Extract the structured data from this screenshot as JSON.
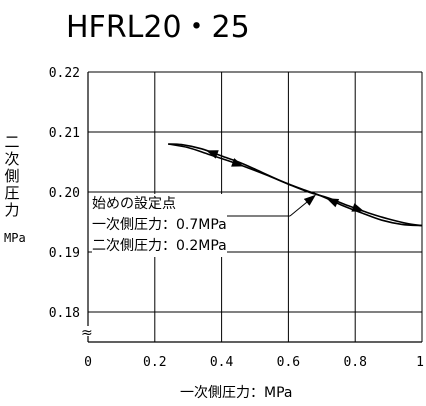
{
  "chart_data": {
    "type": "line",
    "title": "HFRL20・25",
    "xlabel": "一次側圧力：MPa",
    "ylabel": "二次側圧力",
    "yunit": "MPa",
    "xlim": [
      0,
      1
    ],
    "ylim": [
      0.175,
      0.22
    ],
    "x_ticks": [
      0,
      0.2,
      0.4,
      0.6,
      0.8,
      1
    ],
    "x_tick_labels": [
      "0",
      "0.2",
      "0.4",
      "0.6",
      "0.8",
      "1"
    ],
    "y_ticks": [
      0.18,
      0.19,
      0.2,
      0.21,
      0.22
    ],
    "y_tick_labels": [
      "0.18",
      "0.19",
      "0.20",
      "0.21",
      "0.22"
    ],
    "grid": true,
    "axis_break": "≈",
    "series": [
      {
        "direction": "increasing",
        "x": [
          0.24,
          0.3,
          0.36,
          0.42,
          0.48,
          0.54,
          0.6,
          0.66,
          0.72,
          0.78,
          0.84,
          0.9,
          0.96,
          1.0
        ],
        "y": [
          0.208,
          0.2074,
          0.2063,
          0.2052,
          0.204,
          0.2027,
          0.2013,
          0.2,
          0.199,
          0.1977,
          0.1965,
          0.1955,
          0.1947,
          0.1944
        ]
      },
      {
        "direction": "decreasing",
        "x": [
          1.0,
          0.94,
          0.88,
          0.82,
          0.76,
          0.7,
          0.64,
          0.58,
          0.52,
          0.46,
          0.4,
          0.34,
          0.28,
          0.24
        ],
        "y": [
          0.1944,
          0.1946,
          0.1953,
          0.1965,
          0.1978,
          0.1993,
          0.2005,
          0.2018,
          0.2033,
          0.2048,
          0.206,
          0.2072,
          0.2079,
          0.208
        ]
      }
    ],
    "annotation": {
      "lines": [
        "始めの設定点",
        "一次側圧力：0.7MPa",
        "二次側圧力：0.2MPa"
      ],
      "points_to": [
        0.68,
        0.2001
      ]
    }
  }
}
